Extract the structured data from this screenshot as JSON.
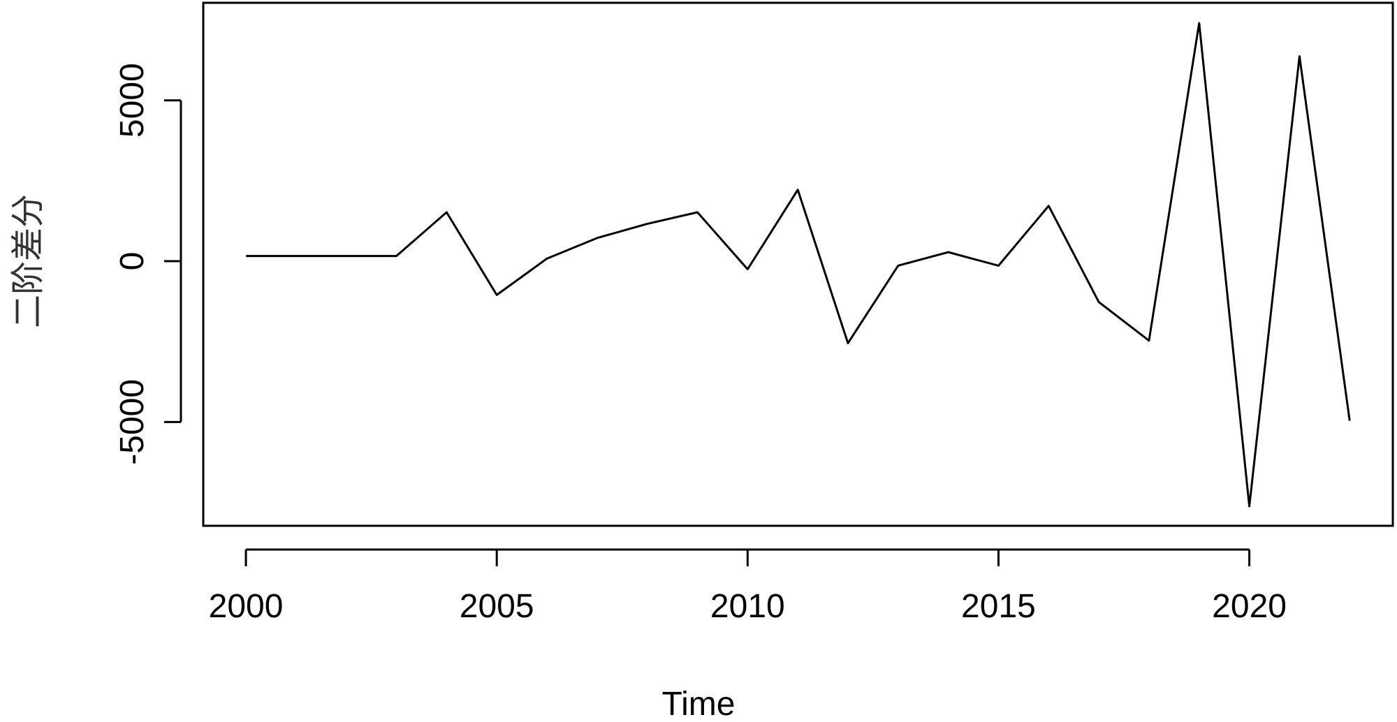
{
  "chart_data": {
    "type": "line",
    "x_label": "Time",
    "y_label": "二阶差分",
    "x": [
      2000,
      2001,
      2002,
      2003,
      2004,
      2005,
      2006,
      2007,
      2008,
      2009,
      2010,
      2011,
      2012,
      2013,
      2014,
      2015,
      2016,
      2017,
      2018,
      2019,
      2020,
      2021,
      2022
    ],
    "series": [
      {
        "color": "#000000",
        "values": [
          160,
          160,
          160,
          160,
          1520,
          -1050,
          80,
          720,
          1160,
          1520,
          -250,
          2220,
          -2550,
          -140,
          280,
          -140,
          1720,
          -1270,
          -2470,
          7400,
          -7620,
          6370,
          -4960
        ]
      }
    ],
    "xlim": [
      1999.15,
      2022.86
    ],
    "ylim": [
      -8227,
      8033
    ],
    "xticks": [
      2000,
      2005,
      2010,
      2015,
      2020
    ],
    "yticks": [
      -5000,
      0,
      5000
    ]
  }
}
